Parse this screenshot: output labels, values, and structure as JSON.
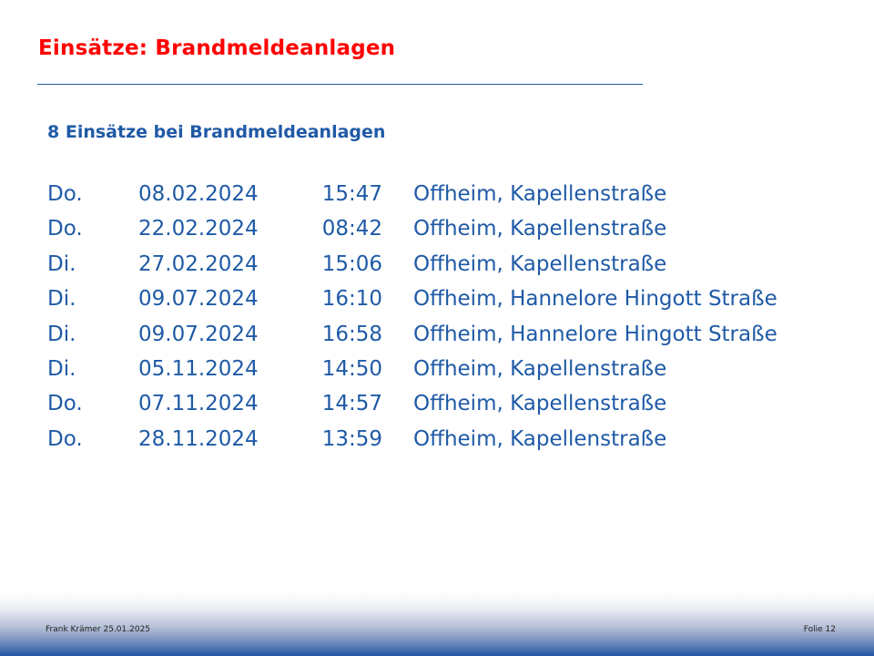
{
  "slide": {
    "title": "Einsätze: Brandmeldeanlagen",
    "subtitle": "8 Einsätze bei Brandmeldeanlagen",
    "rows": [
      {
        "day": "Do.",
        "date": "08.02.2024",
        "time": "15:47",
        "place": "Offheim, Kapellenstraße"
      },
      {
        "day": "Do.",
        "date": "22.02.2024",
        "time": "08:42",
        "place": "Offheim, Kapellenstraße"
      },
      {
        "day": "Di.",
        "date": "27.02.2024",
        "time": "15:06",
        "place": "Offheim, Kapellenstraße"
      },
      {
        "day": "Di.",
        "date": "09.07.2024",
        "time": "16:10",
        "place": "Offheim, Hannelore Hingott Straße"
      },
      {
        "day": "Di.",
        "date": "09.07.2024",
        "time": "16:58",
        "place": "Offheim, Hannelore Hingott Straße"
      },
      {
        "day": "Di.",
        "date": "05.11.2024",
        "time": "14:50",
        "place": "Offheim, Kapellenstraße"
      },
      {
        "day": "Do.",
        "date": "07.11.2024",
        "time": "14:57",
        "place": "Offheim, Kapellenstraße"
      },
      {
        "day": "Do.",
        "date": "28.11.2024",
        "time": "13:59",
        "place": "Offheim, Kapellenstraße"
      }
    ]
  },
  "footer": {
    "author_date": "Frank Krämer 25.01.2025",
    "slide_number": "Folie 12"
  },
  "colors": {
    "title": "#ff0000",
    "text": "#1f5aa6",
    "footer_gradient_end": "#1f56a4"
  }
}
